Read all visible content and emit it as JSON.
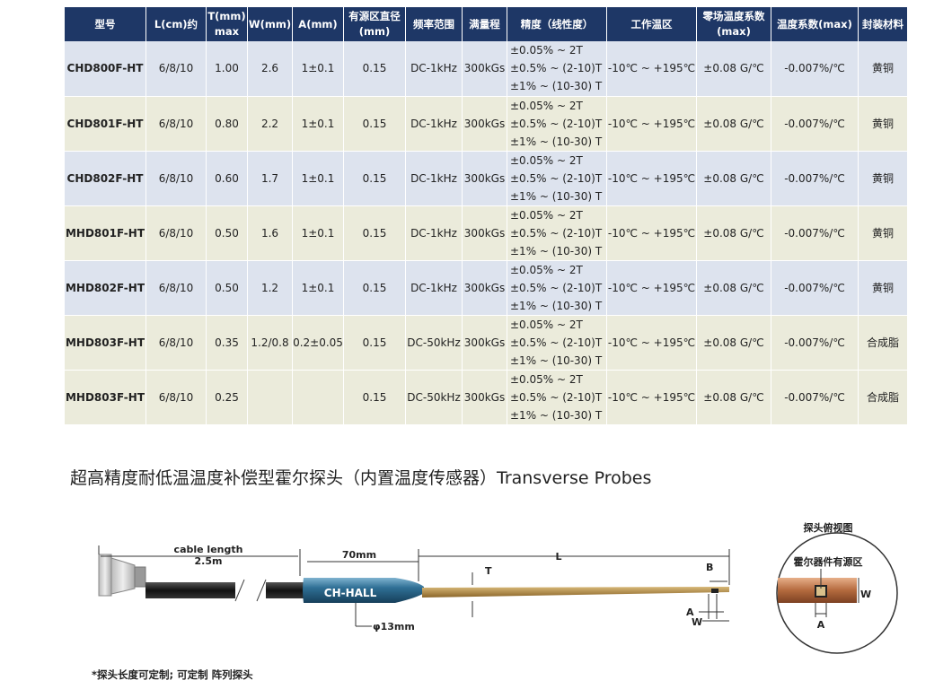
{
  "table": {
    "headers": [
      [
        "型号"
      ],
      [
        "L(cm)约"
      ],
      [
        "T(mm)",
        "max"
      ],
      [
        "W(mm)"
      ],
      [
        "A(mm)"
      ],
      [
        "有源区直径",
        "(mm)"
      ],
      [
        "频率范围"
      ],
      [
        "满量程"
      ],
      [
        "精度（线性度）"
      ],
      [
        "工作温区"
      ],
      [
        "零场温度系数",
        "(max)"
      ],
      [
        "温度系数(max)"
      ],
      [
        "封装材料"
      ]
    ],
    "rows": [
      [
        "CHD800F-HT",
        "6/8/10",
        "1.00",
        "2.6",
        "1±0.1",
        "0.15",
        "DC-1kHz",
        "300kGs",
        [
          "±0.05% ~ 2T",
          "±0.5% ~ (2-10)T",
          "±1% ~  (10-30) T"
        ],
        "-10℃ ~ +195℃",
        "±0.08 G/℃",
        "-0.007%/℃",
        "黄铜"
      ],
      [
        "CHD801F-HT",
        "6/8/10",
        "0.80",
        "2.2",
        "1±0.1",
        "0.15",
        "DC-1kHz",
        "300kGs",
        [
          "±0.05% ~ 2T",
          "±0.5% ~ (2-10)T",
          "±1% ~  (10-30) T"
        ],
        "-10℃ ~ +195℃",
        "±0.08 G/℃",
        "-0.007%/℃",
        "黄铜"
      ],
      [
        "CHD802F-HT",
        "6/8/10",
        "0.60",
        "1.7",
        "1±0.1",
        "0.15",
        "DC-1kHz",
        "300kGs",
        [
          "±0.05% ~ 2T",
          "±0.5% ~ (2-10)T",
          "±1% ~  (10-30) T"
        ],
        "-10℃ ~ +195℃",
        "±0.08 G/℃",
        "-0.007%/℃",
        "黄铜"
      ],
      [
        "MHD801F-HT",
        "6/8/10",
        "0.50",
        "1.6",
        "1±0.1",
        "0.15",
        "DC-1kHz",
        "300kGs",
        [
          "±0.05% ~ 2T",
          "±0.5% ~ (2-10)T",
          "±1% ~  (10-30) T"
        ],
        "-10℃ ~ +195℃",
        "±0.08 G/℃",
        "-0.007%/℃",
        "黄铜"
      ],
      [
        "MHD802F-HT",
        "6/8/10",
        "0.50",
        "1.2",
        "1±0.1",
        "0.15",
        "DC-1kHz",
        "300kGs",
        [
          "±0.05% ~ 2T",
          "±0.5% ~ (2-10)T",
          "±1% ~  (10-30) T"
        ],
        "-10℃ ~ +195℃",
        "±0.08 G/℃",
        "-0.007%/℃",
        "黄铜"
      ],
      [
        "MHD803F-HT",
        "6/8/10",
        "0.35",
        "1.2/0.8",
        "0.2±0.05",
        "0.15",
        "DC-50kHz",
        "300kGs",
        [
          "±0.05% ~ 2T",
          "±0.5% ~ (2-10)T",
          "±1% ~  (10-30) T"
        ],
        "-10℃ ~ +195℃",
        "±0.08 G/℃",
        "-0.007%/℃",
        "合成脂"
      ],
      [
        "MHD803F-HT",
        "6/8/10",
        "0.25",
        null,
        null,
        "0.15",
        "DC-50kHz",
        "300kGs",
        [
          "±0.05% ~ 2T",
          "±0.5% ~ (2-10)T",
          "±1% ~  (10-30) T"
        ],
        "-10℃ ~ +195℃",
        "±0.08 G/℃",
        "-0.007%/℃",
        "合成脂"
      ]
    ]
  },
  "section": {
    "title": "超高精度耐低温温度补偿型霍尔探头（内置温度传感器）Transverse Probes"
  },
  "diagram": {
    "cable_length": "cable length",
    "cable_value": "2.5m",
    "body_length": "70mm",
    "brand": "CH-HALL",
    "diameter": "φ13mm",
    "probe_length": "L",
    "thickness": "T",
    "b": "B",
    "a": "A",
    "w": "W",
    "top_view": {
      "title": "探头俯视图",
      "active_area": "霍尔器件有源区",
      "w": "W",
      "a": "A"
    }
  },
  "footnote": "*探头长度可定制; 可定制 阵列探头"
}
